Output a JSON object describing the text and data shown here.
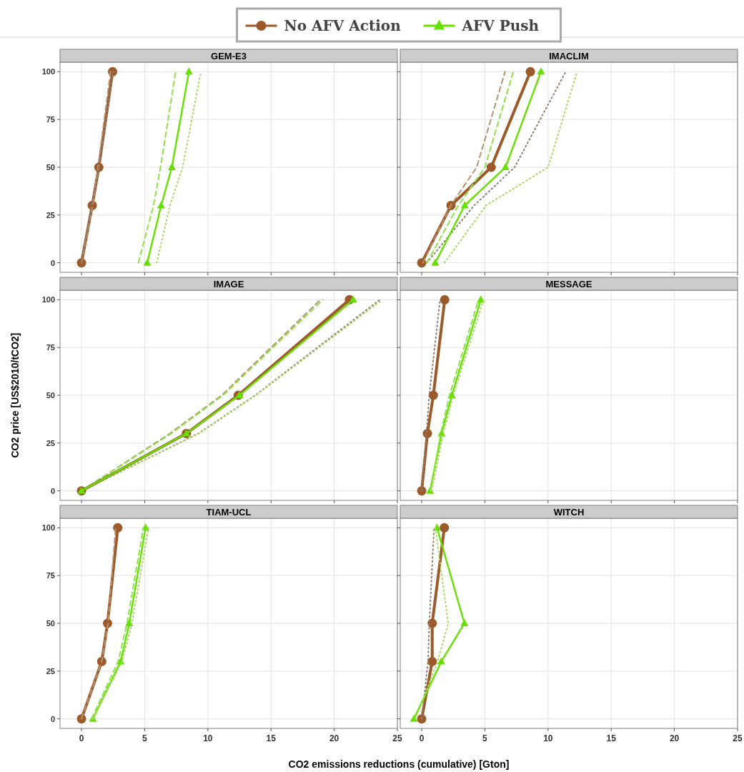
{
  "chart_data": [
    {
      "type": "line",
      "title": "GEM-E3",
      "legend": "top",
      "xlim": [
        -1.7,
        25
      ],
      "xticks": [
        0,
        5,
        10,
        15,
        20,
        25
      ],
      "ylim": [
        -5,
        105
      ],
      "yticks": [
        0,
        25,
        50,
        75,
        100
      ],
      "grid": true,
      "tick_labels": "y",
      "series": [
        {
          "name": "No AFV Action",
          "color": "#9c5a2a",
          "x": [
            0,
            0.85,
            1.37,
            2.46
          ],
          "values": [
            0,
            30,
            50,
            100
          ],
          "marker": "circle",
          "line_style": "solid"
        },
        {
          "color": "#b8926e",
          "x": [
            0,
            0.9,
            1.3,
            2.3
          ],
          "values": [
            0,
            30,
            50,
            100
          ],
          "marker": "none",
          "line_style": "dashed"
        },
        {
          "color": "#8c7e72",
          "x": [
            0,
            0.8,
            1.4,
            2.5
          ],
          "values": [
            0,
            30,
            50,
            100
          ],
          "marker": "none",
          "line_style": "dotted"
        },
        {
          "name": "AFV Push",
          "color": "#66e000",
          "x": [
            5.2,
            6.3,
            7.15,
            8.5
          ],
          "values": [
            0,
            30,
            50,
            100
          ],
          "marker": "triangle",
          "line_style": "solid"
        },
        {
          "color": "#8fe04a",
          "x": [
            4.5,
            5.7,
            6.25,
            7.45
          ],
          "values": [
            0,
            30,
            50,
            100
          ],
          "marker": "none",
          "line_style": "dashed"
        },
        {
          "color": "#a8d860",
          "x": [
            5.95,
            7.0,
            8.0,
            9.45
          ],
          "values": [
            0,
            30,
            50,
            100
          ],
          "marker": "none",
          "line_style": "dotted"
        }
      ]
    },
    {
      "type": "line",
      "title": "IMACLIM",
      "xlim": [
        -1.7,
        25
      ],
      "xticks": [
        0,
        5,
        10,
        15,
        20,
        25
      ],
      "ylim": [
        -5,
        105
      ],
      "yticks": [
        0,
        25,
        50,
        75,
        100
      ],
      "grid": true,
      "tick_labels": false,
      "series": [
        {
          "color": "#9c5a2a",
          "x": [
            0,
            2.32,
            5.5,
            8.6
          ],
          "values": [
            0,
            30,
            50,
            100
          ],
          "marker": "circle",
          "line_style": "solid"
        },
        {
          "color": "#b8926e",
          "x": [
            0.1,
            2.3,
            4.35,
            6.6
          ],
          "values": [
            0,
            30,
            50,
            100
          ],
          "marker": "none",
          "line_style": "dashed"
        },
        {
          "color": "#8c7e72",
          "x": [
            0.4,
            4.15,
            7.35,
            11.4
          ],
          "values": [
            0,
            30,
            50,
            100
          ],
          "marker": "none",
          "line_style": "dotted"
        },
        {
          "color": "#66e000",
          "x": [
            1.07,
            3.4,
            6.63,
            9.44
          ],
          "values": [
            0,
            30,
            50,
            100
          ],
          "marker": "triangle",
          "line_style": "solid"
        },
        {
          "color": "#8fe04a",
          "x": [
            0.4,
            2.9,
            5.0,
            7.25
          ],
          "values": [
            0,
            30,
            50,
            100
          ],
          "marker": "none",
          "line_style": "dashed"
        },
        {
          "color": "#a8d860",
          "x": [
            1.8,
            5.1,
            10.0,
            12.3
          ],
          "values": [
            0,
            30,
            50,
            100
          ],
          "marker": "none",
          "line_style": "dotted"
        }
      ]
    },
    {
      "type": "line",
      "title": "IMAGE",
      "ylabel": "CO2 price [US$2010/tCO2]",
      "xlim": [
        -1.7,
        25
      ],
      "xticks": [
        0,
        5,
        10,
        15,
        20,
        25
      ],
      "ylim": [
        -5,
        105
      ],
      "yticks": [
        0,
        25,
        50,
        75,
        100
      ],
      "grid": true,
      "tick_labels": "y",
      "series": [
        {
          "color": "#b8926e",
          "x": [
            0,
            7.0,
            11.1,
            18.9
          ],
          "values": [
            0,
            30,
            50,
            100
          ],
          "marker": "none",
          "line_style": "dashed"
        },
        {
          "color": "#8c7e72",
          "x": [
            0,
            9.25,
            13.75,
            23.6
          ],
          "values": [
            0,
            30,
            50,
            100
          ],
          "marker": "none",
          "line_style": "dotted"
        },
        {
          "color": "#8fe04a",
          "x": [
            0,
            7.1,
            11.2,
            19.1
          ],
          "values": [
            0,
            30,
            50,
            100
          ],
          "marker": "none",
          "line_style": "dashed"
        },
        {
          "color": "#a8d860",
          "x": [
            0,
            9.3,
            13.8,
            23.8
          ],
          "values": [
            0,
            30,
            50,
            100
          ],
          "marker": "none",
          "line_style": "dotted"
        },
        {
          "color": "#9c5a2a",
          "x": [
            0,
            8.3,
            12.4,
            21.2
          ],
          "values": [
            0,
            30,
            50,
            100
          ],
          "marker": "circle",
          "line_style": "solid"
        },
        {
          "color": "#66e000",
          "x": [
            0,
            8.3,
            12.5,
            21.5
          ],
          "values": [
            0,
            30,
            50,
            100
          ],
          "marker": "triangle",
          "line_style": "solid"
        }
      ]
    },
    {
      "type": "line",
      "title": "MESSAGE",
      "xlim": [
        -1.7,
        25
      ],
      "xticks": [
        0,
        5,
        10,
        15,
        20,
        25
      ],
      "ylim": [
        -5,
        105
      ],
      "yticks": [
        0,
        25,
        50,
        75,
        100
      ],
      "grid": true,
      "tick_labels": false,
      "series": [
        {
          "color": "#9c5a2a",
          "x": [
            0,
            0.45,
            0.92,
            1.82
          ],
          "values": [
            0,
            30,
            50,
            100
          ],
          "marker": "circle",
          "line_style": "solid"
        },
        {
          "color": "#8c7e72",
          "x": [
            0,
            0.37,
            0.6,
            1.45
          ],
          "values": [
            0,
            30,
            50,
            100
          ],
          "marker": "none",
          "line_style": "dotted"
        },
        {
          "color": "#66e000",
          "x": [
            0.66,
            1.57,
            2.38,
            4.68
          ],
          "values": [
            0,
            30,
            50,
            100
          ],
          "marker": "triangle",
          "line_style": "solid"
        },
        {
          "color": "#8fe04a",
          "x": [
            0.7,
            1.5,
            2.2,
            4.5
          ],
          "values": [
            0,
            30,
            50,
            100
          ],
          "marker": "none",
          "line_style": "dashed"
        },
        {
          "color": "#a8d860",
          "x": [
            0.8,
            1.7,
            2.5,
            4.9
          ],
          "values": [
            0,
            30,
            50,
            100
          ],
          "marker": "none",
          "line_style": "dotted"
        }
      ]
    },
    {
      "type": "line",
      "title": "TIAM-UCL",
      "xlabel": "CO2 emissions reductions (cumulative) [Gton]",
      "xlim": [
        -1.7,
        25
      ],
      "xticks": [
        0,
        5,
        10,
        15,
        20,
        25
      ],
      "ylim": [
        -5,
        105
      ],
      "yticks": [
        0,
        25,
        50,
        75,
        100
      ],
      "grid": true,
      "series": [
        {
          "color": "#9c5a2a",
          "x": [
            0,
            1.6,
            2.06,
            2.87
          ],
          "values": [
            0,
            30,
            50,
            100
          ],
          "marker": "circle",
          "line_style": "solid"
        },
        {
          "color": "#b8926e",
          "x": [
            0,
            1.6,
            2.1,
            2.7
          ],
          "values": [
            0,
            30,
            50,
            100
          ],
          "marker": "none",
          "line_style": "dashed"
        },
        {
          "color": "#66e000",
          "x": [
            0.9,
            3.1,
            3.78,
            5.07
          ],
          "values": [
            0,
            30,
            50,
            100
          ],
          "marker": "triangle",
          "line_style": "solid"
        },
        {
          "color": "#8fe04a",
          "x": [
            0.8,
            2.9,
            3.6,
            4.9
          ],
          "values": [
            0,
            30,
            50,
            100
          ],
          "marker": "none",
          "line_style": "dashed"
        },
        {
          "color": "#a8d860",
          "x": [
            0.9,
            3.2,
            4.0,
            5.3
          ],
          "values": [
            0,
            30,
            50,
            100
          ],
          "marker": "none",
          "line_style": "dotted"
        }
      ]
    },
    {
      "type": "line",
      "title": "WITCH",
      "xlim": [
        -1.7,
        25
      ],
      "xticks": [
        0,
        5,
        10,
        15,
        20,
        25
      ],
      "ylim": [
        -5,
        105
      ],
      "yticks": [
        0,
        25,
        50,
        75,
        100
      ],
      "grid": true,
      "tick_labels": "x",
      "series": [
        {
          "color": "#9c5a2a",
          "x": [
            0,
            0.83,
            0.83,
            1.79
          ],
          "values": [
            0,
            30,
            50,
            100
          ],
          "marker": "circle",
          "line_style": "solid"
        },
        {
          "color": "#8c7e72",
          "x": [
            0,
            0.5,
            0.6,
            0.98
          ],
          "values": [
            0,
            30,
            50,
            100
          ],
          "marker": "none",
          "line_style": "dotted"
        },
        {
          "color": "#66e000",
          "x": [
            -0.62,
            1.55,
            3.38,
            1.21
          ],
          "values": [
            0,
            30,
            50,
            100
          ],
          "marker": "triangle",
          "line_style": "solid"
        },
        {
          "color": "#a8d860",
          "x": [
            -0.5,
            1.26,
            2.1,
            1.08
          ],
          "values": [
            0,
            30,
            50,
            100
          ],
          "marker": "none",
          "line_style": "dotted"
        }
      ]
    }
  ]
}
